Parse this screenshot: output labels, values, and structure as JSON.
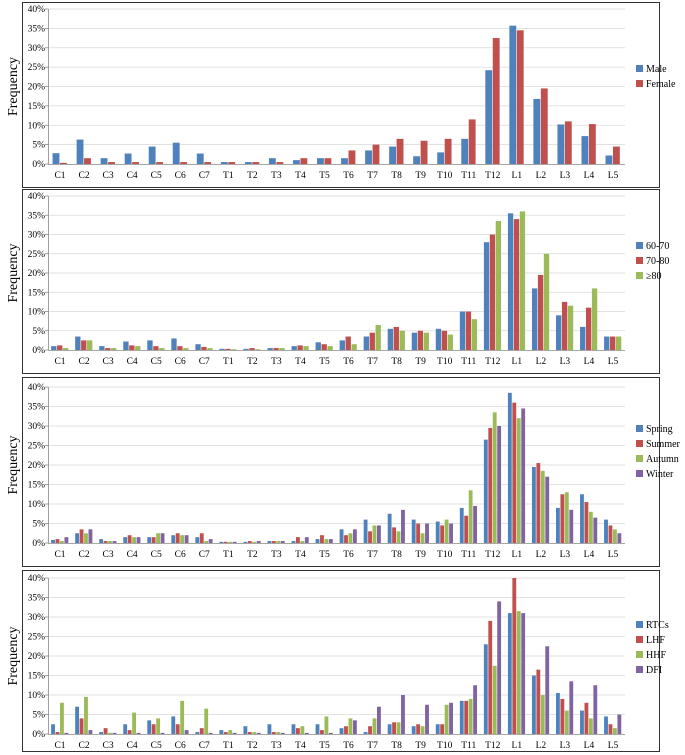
{
  "chart_data": [
    {
      "type": "bar",
      "ylabel": "Frequency",
      "ylim": [
        0,
        40
      ],
      "ytick_labels": [
        "0%",
        "5%",
        "10%",
        "15%",
        "20%",
        "25%",
        "30%",
        "35%",
        "40%"
      ],
      "categories": [
        "C1",
        "C2",
        "C3",
        "C4",
        "C5",
        "C6",
        "C7",
        "T1",
        "T2",
        "T3",
        "T4",
        "T5",
        "T6",
        "T7",
        "T8",
        "T9",
        "T10",
        "T11",
        "T12",
        "L1",
        "L2",
        "L3",
        "L4",
        "L5"
      ],
      "series": [
        {
          "name": "Male",
          "color": "#4F81BD",
          "values": [
            2.8,
            6.3,
            1.5,
            2.7,
            4.5,
            5.5,
            2.7,
            0.5,
            0.5,
            1.5,
            1.0,
            1.5,
            1.5,
            3.5,
            4.5,
            2.0,
            3.0,
            6.5,
            24.2,
            35.7,
            16.8,
            10.2,
            7.2,
            2.2
          ]
        },
        {
          "name": "Female",
          "color": "#C0504D",
          "values": [
            0.3,
            1.5,
            0.5,
            0.5,
            0.5,
            0.5,
            0.5,
            0.5,
            0.5,
            0.5,
            1.5,
            1.5,
            3.5,
            5.0,
            6.5,
            6.0,
            6.5,
            11.5,
            32.5,
            34.5,
            19.5,
            11.0,
            10.3,
            4.5
          ]
        }
      ]
    },
    {
      "type": "bar",
      "ylabel": "Frequency",
      "ylim": [
        0,
        40
      ],
      "ytick_labels": [
        "0%",
        "5%",
        "10%",
        "15%",
        "20%",
        "25%",
        "30%",
        "35%",
        "40%"
      ],
      "categories": [
        "C1",
        "C2",
        "C3",
        "C4",
        "C5",
        "C6",
        "C7",
        "T1",
        "T2",
        "T3",
        "T4",
        "T5",
        "T6",
        "T7",
        "T8",
        "T9",
        "T10",
        "T11",
        "T12",
        "L1",
        "L2",
        "L3",
        "L4",
        "L5"
      ],
      "series": [
        {
          "name": "60-70",
          "color": "#4F81BD",
          "values": [
            1.0,
            3.5,
            1.0,
            2.2,
            2.5,
            3.0,
            1.5,
            0.3,
            0.3,
            0.5,
            1.0,
            2.0,
            2.5,
            3.5,
            5.5,
            4.5,
            5.5,
            10.0,
            28.0,
            35.5,
            16.0,
            9.0,
            6.0,
            3.5
          ]
        },
        {
          "name": "70-80",
          "color": "#C0504D",
          "values": [
            1.2,
            2.5,
            0.5,
            1.2,
            1.0,
            1.0,
            0.8,
            0.3,
            0.5,
            0.5,
            1.2,
            1.5,
            3.5,
            4.5,
            6.0,
            5.0,
            5.0,
            10.0,
            30.0,
            34.0,
            19.5,
            12.5,
            11.0,
            3.5
          ]
        },
        {
          "name": "≥80",
          "color": "#9BBB59",
          "values": [
            0.5,
            2.5,
            0.5,
            1.0,
            0.5,
            0.5,
            0.5,
            0.2,
            0.2,
            0.5,
            1.0,
            1.0,
            1.5,
            6.5,
            5.0,
            4.5,
            4.0,
            8.0,
            33.5,
            36.0,
            25.0,
            11.5,
            16.0,
            3.5
          ]
        }
      ]
    },
    {
      "type": "bar",
      "ylabel": "Frequency",
      "ylim": [
        0,
        40
      ],
      "ytick_labels": [
        "0%",
        "5%",
        "10%",
        "15%",
        "20%",
        "25%",
        "30%",
        "35%",
        "40%"
      ],
      "categories": [
        "C1",
        "C2",
        "C3",
        "C4",
        "C5",
        "C6",
        "C7",
        "T1",
        "T2",
        "T3",
        "T4",
        "T5",
        "T6",
        "T7",
        "T8",
        "T9",
        "T10",
        "T11",
        "T12",
        "L1",
        "L2",
        "L3",
        "L4",
        "L5"
      ],
      "series": [
        {
          "name": "Spring",
          "color": "#4F81BD",
          "values": [
            0.8,
            2.5,
            1.0,
            1.5,
            1.5,
            2.0,
            1.5,
            0.3,
            0.3,
            0.5,
            0.5,
            1.0,
            3.5,
            6.0,
            7.5,
            6.0,
            5.5,
            9.0,
            26.5,
            38.5,
            19.5,
            9.0,
            12.5,
            6.0
          ]
        },
        {
          "name": "Summer",
          "color": "#C0504D",
          "values": [
            1.0,
            3.5,
            0.5,
            2.0,
            1.5,
            2.5,
            2.5,
            0.3,
            0.5,
            0.5,
            1.5,
            2.0,
            2.0,
            3.0,
            4.0,
            5.0,
            4.5,
            7.0,
            29.5,
            36.0,
            20.5,
            12.5,
            10.5,
            4.5
          ]
        },
        {
          "name": "Autumn",
          "color": "#9BBB59",
          "values": [
            0.5,
            2.5,
            0.5,
            1.5,
            2.5,
            2.0,
            0.5,
            0.3,
            0.3,
            0.5,
            0.5,
            1.0,
            2.5,
            4.5,
            3.0,
            2.5,
            6.0,
            13.5,
            33.5,
            32.0,
            18.5,
            13.0,
            8.0,
            3.5
          ]
        },
        {
          "name": "Winter",
          "color": "#8064A2",
          "values": [
            1.5,
            3.5,
            0.5,
            1.5,
            2.5,
            2.0,
            1.0,
            0.3,
            0.5,
            0.5,
            1.5,
            1.0,
            3.5,
            4.5,
            8.5,
            5.0,
            5.0,
            9.5,
            30.0,
            34.5,
            17.0,
            8.5,
            6.5,
            2.5
          ]
        }
      ]
    },
    {
      "type": "bar",
      "ylabel": "Frequency",
      "ylim": [
        0,
        40
      ],
      "ytick_labels": [
        "0%",
        "5%",
        "10%",
        "15%",
        "20%",
        "25%",
        "30%",
        "35%",
        "40%"
      ],
      "categories": [
        "C1",
        "C2",
        "C3",
        "C4",
        "C5",
        "C6",
        "C7",
        "T1",
        "T2",
        "T3",
        "T4",
        "T5",
        "T6",
        "T7",
        "T8",
        "T9",
        "T10",
        "T11",
        "T12",
        "L1",
        "L2",
        "L3",
        "L4",
        "L5"
      ],
      "series": [
        {
          "name": "RTCs",
          "color": "#4F81BD",
          "values": [
            2.5,
            7.0,
            0.5,
            2.5,
            3.5,
            4.5,
            0.5,
            1.0,
            2.0,
            2.5,
            2.5,
            2.5,
            1.5,
            0.5,
            2.5,
            2.0,
            2.5,
            8.5,
            23.0,
            31.0,
            15.0,
            10.5,
            6.0,
            4.5
          ]
        },
        {
          "name": "LHF",
          "color": "#C0504D",
          "values": [
            0.5,
            4.0,
            1.5,
            1.0,
            2.5,
            2.5,
            1.5,
            0.5,
            0.5,
            0.5,
            1.5,
            1.0,
            2.0,
            2.0,
            3.0,
            2.5,
            2.5,
            8.5,
            29.0,
            40.0,
            16.5,
            9.0,
            8.0,
            2.5
          ]
        },
        {
          "name": "HHF",
          "color": "#9BBB59",
          "values": [
            8.0,
            9.5,
            0.3,
            5.5,
            4.0,
            8.5,
            6.5,
            1.0,
            0.5,
            0.5,
            2.0,
            4.5,
            4.0,
            4.0,
            3.0,
            2.0,
            7.5,
            9.0,
            17.5,
            31.5,
            10.0,
            6.0,
            4.0,
            1.5
          ]
        },
        {
          "name": "DFI",
          "color": "#8064A2",
          "values": [
            0.3,
            1.0,
            0.3,
            0.3,
            0.3,
            1.0,
            0.3,
            0.3,
            0.3,
            0.3,
            0.3,
            0.3,
            3.5,
            7.0,
            10.0,
            7.5,
            8.0,
            12.5,
            34.0,
            31.0,
            22.5,
            13.5,
            12.5,
            5.0
          ]
        }
      ]
    }
  ]
}
